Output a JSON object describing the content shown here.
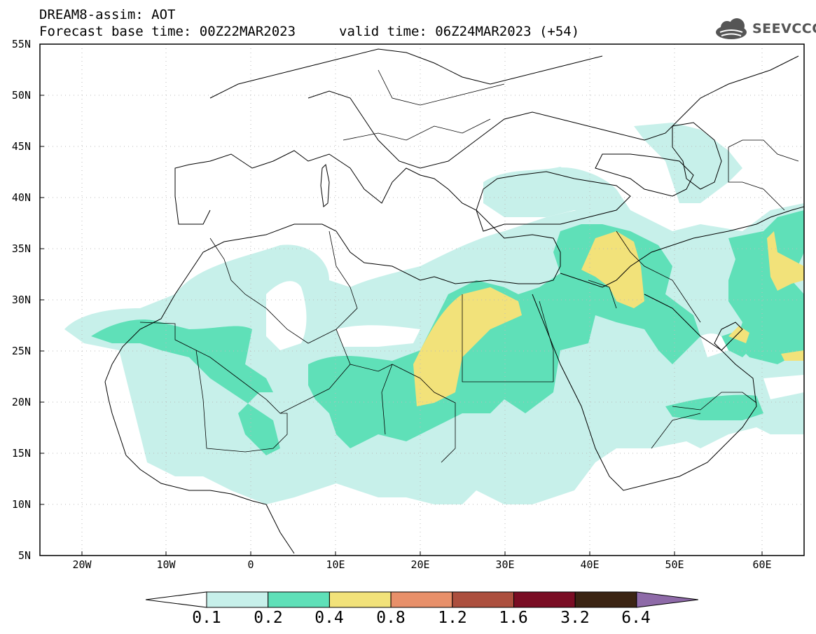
{
  "header": {
    "title": "DREAM8-assim: AOT",
    "base_time": "Forecast base time: 00Z22MAR2023",
    "valid_time": "valid time: 06Z24MAR2023 (+54)",
    "logo_text": "SEEVCCC",
    "logo_icon": "cloud-icon"
  },
  "map": {
    "lat_labels": [
      "55N",
      "50N",
      "45N",
      "40N",
      "35N",
      "30N",
      "25N",
      "20N",
      "15N",
      "10N",
      "5N"
    ],
    "lon_labels": [
      "20W",
      "10W",
      "0",
      "10E",
      "20E",
      "30E",
      "40E",
      "50E",
      "60E"
    ]
  },
  "colorbar": {
    "colors": [
      "#c7f0ea",
      "#5fe0b8",
      "#f2e27a",
      "#e8906a",
      "#ac4f3e",
      "#7a0d24",
      "#3b2413",
      "#8e6aa8"
    ],
    "under_color": "#ffffff",
    "labels": [
      "0.1",
      "0.2",
      "0.4",
      "0.8",
      "1.2",
      "1.6",
      "3.2",
      "6.4"
    ]
  }
}
